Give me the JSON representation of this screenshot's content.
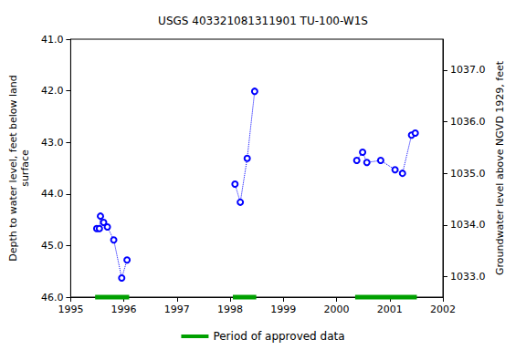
{
  "chart_data": {
    "type": "line",
    "title": "USGS 403321081311901 TU-100-W1S",
    "y_label": "Depth to water level, feet below land\nsurface",
    "y2_label": "Groundwater level above NGVD 1929, feet",
    "x": [
      1995.49,
      1995.54,
      1995.56,
      1995.62,
      1995.69,
      1995.81,
      1995.96,
      1996.06,
      1997.0,
      1998.09,
      1998.19,
      1998.32,
      1998.46,
      1999.5,
      2000.38,
      2000.49,
      2000.57,
      2000.83,
      2001.1,
      2001.24,
      2001.41,
      2001.48
    ],
    "values": [
      44.67,
      44.67,
      44.43,
      44.55,
      44.64,
      44.89,
      45.63,
      45.28,
      null,
      43.81,
      44.16,
      43.31,
      42.01,
      null,
      43.35,
      43.19,
      43.39,
      43.35,
      43.53,
      43.6,
      42.86,
      42.82
    ],
    "color": "#0000ff",
    "marker": "circle",
    "line_style": "dotted",
    "approved_periods": {
      "name": "Period of approved data",
      "color": "#00a000",
      "ranges": [
        [
          1995.46,
          1996.1
        ],
        [
          1998.05,
          1998.49
        ],
        [
          2000.35,
          2001.51
        ]
      ]
    },
    "xlim": [
      1995,
      2002
    ],
    "xticks": [
      1995,
      1996,
      1997,
      1998,
      1999,
      2000,
      2001,
      2002
    ],
    "ylim": [
      41,
      46
    ],
    "yticks": [
      {
        "value": 41,
        "label": "41.0"
      },
      {
        "value": 42,
        "label": "42.0"
      },
      {
        "value": 43,
        "label": "43.0"
      },
      {
        "value": 44,
        "label": "44.0"
      },
      {
        "value": 45,
        "label": "45.0"
      },
      {
        "value": 46,
        "label": "46.0"
      }
    ],
    "y2lim": [
      1032.6,
      1037.6
    ],
    "y2ticks": [
      {
        "value": 1033,
        "label": "1033.0"
      },
      {
        "value": 1034,
        "label": "1034.0"
      },
      {
        "value": 1035,
        "label": "1035.0"
      },
      {
        "value": 1036,
        "label": "1036.0"
      },
      {
        "value": 1037,
        "label": "1037.0"
      }
    ],
    "grid": false,
    "legend": "bottom"
  }
}
